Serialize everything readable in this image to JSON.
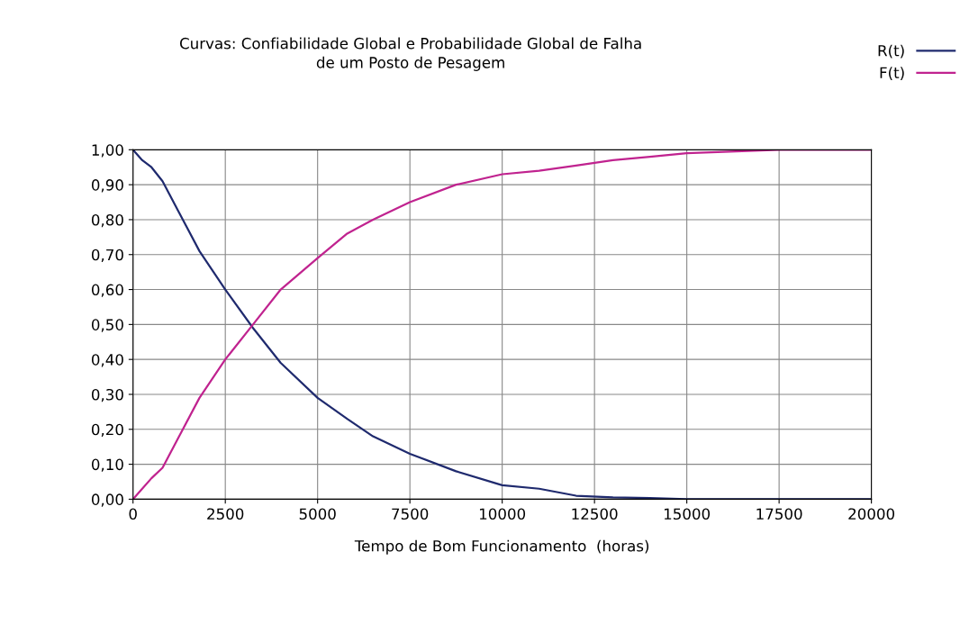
{
  "chart_data": {
    "type": "line",
    "title": "Curvas: Confiabilidade Global e Probabilidade Global de Falha\nde um Posto de Pesagem",
    "xlabel": "Tempo de Bom Funcionamento  (horas)",
    "x": [
      0,
      250,
      500,
      800,
      1250,
      1800,
      2500,
      3250,
      4000,
      5000,
      5800,
      6500,
      7500,
      8750,
      10000,
      11000,
      12000,
      13000,
      14000,
      15000,
      17500,
      20000
    ],
    "series": [
      {
        "name": "R(t)",
        "color": "#1f2a6e",
        "values": [
          1.0,
          0.97,
          0.95,
          0.91,
          0.82,
          0.71,
          0.6,
          0.49,
          0.39,
          0.29,
          0.23,
          0.18,
          0.13,
          0.08,
          0.04,
          0.03,
          0.01,
          0.005,
          0.003,
          0.0,
          0.0,
          0.0
        ]
      },
      {
        "name": "F(t)",
        "color": "#c0238f",
        "values": [
          0.0,
          0.03,
          0.06,
          0.09,
          0.18,
          0.29,
          0.4,
          0.5,
          0.6,
          0.69,
          0.76,
          0.8,
          0.85,
          0.9,
          0.93,
          0.94,
          0.955,
          0.97,
          0.98,
          0.99,
          1.0,
          1.0
        ]
      }
    ],
    "xlim": [
      0,
      20000
    ],
    "xticks": [
      0,
      2500,
      5000,
      7500,
      10000,
      12500,
      15000,
      17500,
      20000
    ],
    "ylim": [
      0,
      1
    ],
    "yticks": [
      {
        "value": 0,
        "label": "0,00"
      },
      {
        "value": 0.1,
        "label": "0,10"
      },
      {
        "value": 0.2,
        "label": "0,20"
      },
      {
        "value": 0.3,
        "label": "0,30"
      },
      {
        "value": 0.4,
        "label": "0,40"
      },
      {
        "value": 0.5,
        "label": "0,50"
      },
      {
        "value": 0.6,
        "label": "0,60"
      },
      {
        "value": 0.7,
        "label": "0,70"
      },
      {
        "value": 0.8,
        "label": "0,80"
      },
      {
        "value": 0.9,
        "label": "0,90"
      },
      {
        "value": 1.0,
        "label": "1,00"
      }
    ],
    "grid": true,
    "legend": "top right",
    "marker": "none",
    "line_style": "solid"
  }
}
